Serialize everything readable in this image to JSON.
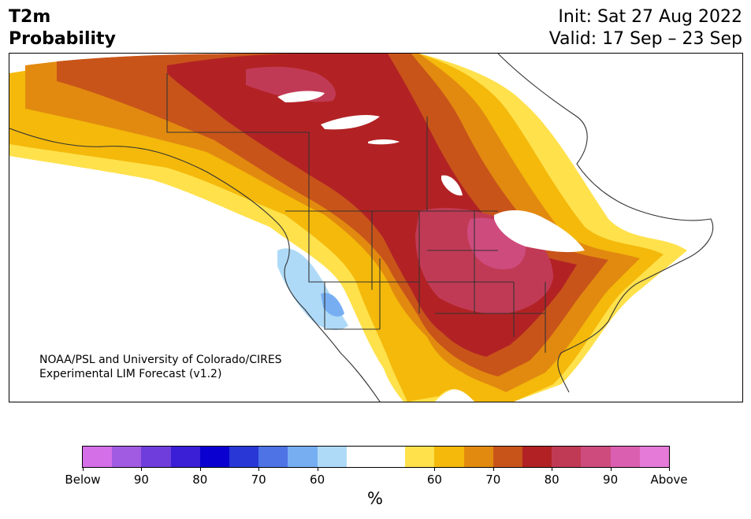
{
  "header": {
    "title_line1": "T2m",
    "title_line2": "Probability",
    "init": "Init: Sat 27 Aug 2022",
    "valid": "Valid: 17 Sep – 23 Sep"
  },
  "map": {
    "credit_line1": "NOAA/PSL and University of Colorado/CIRES",
    "credit_line2": "Experimental LIM Forecast (v1.2)"
  },
  "colorbar": {
    "units": "%",
    "colors": [
      "#d46fe8",
      "#a15be3",
      "#6f3ddb",
      "#3a1fd6",
      "#0a00cf",
      "#2937d6",
      "#4d73e5",
      "#77aef2",
      "#aedaf8",
      "#ffffff",
      "#ffffff",
      "#ffe14b",
      "#f4b90b",
      "#e28a0f",
      "#c8541a",
      "#b22224",
      "#c13a55",
      "#ce4b7e",
      "#db5fb0",
      "#e57ad8"
    ],
    "ticks": [
      {
        "label": "Below",
        "slot": 0
      },
      {
        "label": "90",
        "slot": 2
      },
      {
        "label": "80",
        "slot": 4
      },
      {
        "label": "70",
        "slot": 6
      },
      {
        "label": "60",
        "slot": 8
      },
      {
        "label": "60",
        "slot": 12
      },
      {
        "label": "70",
        "slot": 14
      },
      {
        "label": "80",
        "slot": 16
      },
      {
        "label": "90",
        "slot": 18
      },
      {
        "label": "Above",
        "slot": 20
      }
    ]
  }
}
